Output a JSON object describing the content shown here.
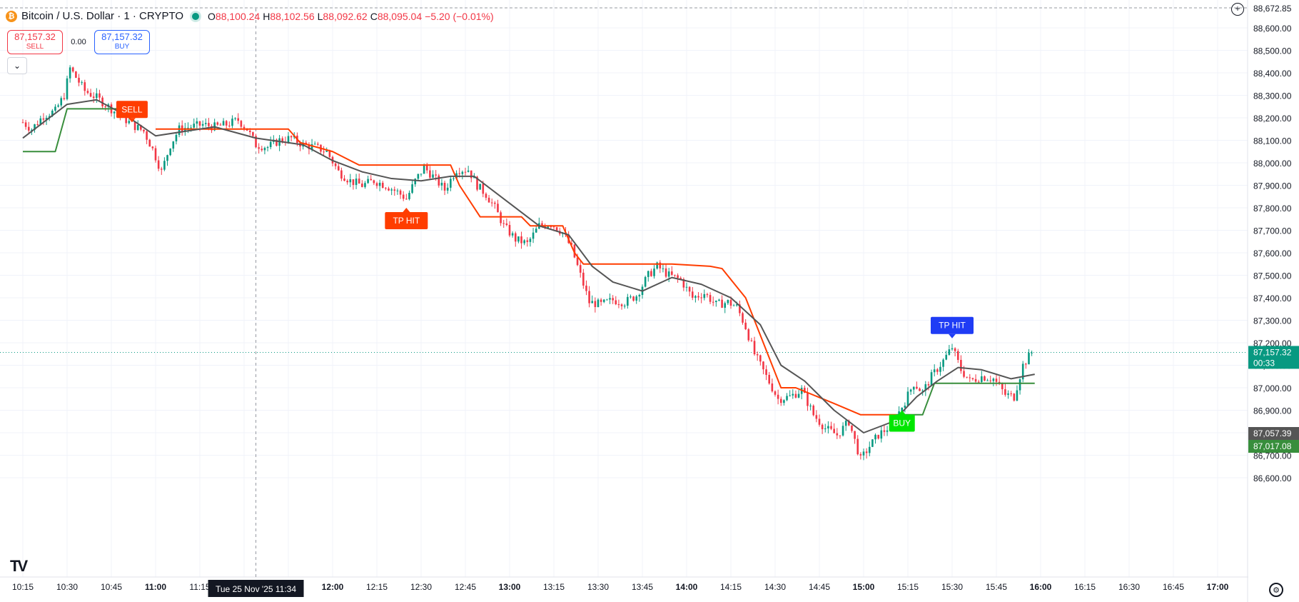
{
  "header": {
    "coin_icon": "bitcoin-icon",
    "symbol_title": "Bitcoin / U.S. Dollar · 1 · CRYPTO",
    "open_label": "O",
    "open": "88,100.24",
    "high_label": "H",
    "high": "88,102.56",
    "low_label": "L",
    "low": "88,092.62",
    "close_label": "C",
    "close": "88,095.04",
    "change": "−5.20 (−0.01%)"
  },
  "trade": {
    "sell_price": "87,157.32",
    "sell_label": "SELL",
    "spread": "0.00",
    "buy_price": "87,157.32",
    "buy_label": "BUY"
  },
  "colors": {
    "up": "#089981",
    "down": "#f23645",
    "ma": "#555555",
    "trail_down": "#ff3d00",
    "trail_up": "#388e3c",
    "buy_marker": "#00e600",
    "tp_blue": "#1f3cf5"
  },
  "chart_data": {
    "type": "candlestick",
    "x_ticks": [
      "10:15",
      "10:30",
      "10:45",
      "11:00",
      "11:15",
      "11:30",
      "11:45",
      "12:00",
      "12:15",
      "12:30",
      "12:45",
      "13:00",
      "13:15",
      "13:30",
      "13:45",
      "14:00",
      "14:15",
      "14:30",
      "14:45",
      "15:00",
      "15:15",
      "15:30",
      "15:45",
      "16:00",
      "16:15",
      "16:30",
      "16:45",
      "17:00"
    ],
    "y_ticks": [
      "86,600.00",
      "86,700.00",
      "86,800.00",
      "86,900.00",
      "87,000.00",
      "87,100.00",
      "87,200.00",
      "87,300.00",
      "87,400.00",
      "87,500.00",
      "87,600.00",
      "87,700.00",
      "87,800.00",
      "87,900.00",
      "88,000.00",
      "88,100.00",
      "88,200.00",
      "88,300.00",
      "88,400.00",
      "88,500.00",
      "88,600.00"
    ],
    "crosshair": {
      "time": "11:34",
      "date_label": "Tue 25 Nov '25   11:34"
    },
    "price_badges": [
      {
        "label": "87,157.32",
        "sub": "00:33",
        "value": 87157.32,
        "color": "#089981"
      },
      {
        "label": "87,057.39",
        "value": 87057.39,
        "color": "#555555"
      },
      {
        "label": "87,017.08",
        "value": 87017.08,
        "color": "#388e3c"
      }
    ],
    "top_cut_label": "88,672.85",
    "close_path": [
      [
        "10:15",
        88180
      ],
      [
        "10:18",
        88150
      ],
      [
        "10:22",
        88210
      ],
      [
        "10:26",
        88230
      ],
      [
        "10:29",
        88300
      ],
      [
        "10:31",
        88420
      ],
      [
        "10:33",
        88380
      ],
      [
        "10:36",
        88320
      ],
      [
        "10:40",
        88290
      ],
      [
        "10:44",
        88250
      ],
      [
        "10:48",
        88210
      ],
      [
        "10:52",
        88170
      ],
      [
        "10:56",
        88140
      ],
      [
        "10:59",
        88060
      ],
      [
        "11:02",
        87960
      ],
      [
        "11:05",
        88080
      ],
      [
        "11:08",
        88150
      ],
      [
        "11:12",
        88160
      ],
      [
        "11:16",
        88170
      ],
      [
        "11:20",
        88160
      ],
      [
        "11:24",
        88170
      ],
      [
        "11:28",
        88190
      ],
      [
        "11:31",
        88150
      ],
      [
        "11:34",
        88080
      ],
      [
        "11:38",
        88070
      ],
      [
        "11:42",
        88100
      ],
      [
        "11:46",
        88110
      ],
      [
        "11:50",
        88080
      ],
      [
        "11:54",
        88070
      ],
      [
        "11:58",
        88050
      ],
      [
        "12:02",
        87960
      ],
      [
        "12:06",
        87920
      ],
      [
        "12:10",
        87900
      ],
      [
        "12:14",
        87920
      ],
      [
        "12:18",
        87900
      ],
      [
        "12:22",
        87870
      ],
      [
        "12:25",
        87840
      ],
      [
        "12:28",
        87920
      ],
      [
        "12:31",
        87980
      ],
      [
        "12:34",
        87940
      ],
      [
        "12:38",
        87880
      ],
      [
        "12:42",
        87970
      ],
      [
        "12:46",
        87970
      ],
      [
        "12:49",
        87900
      ],
      [
        "12:52",
        87860
      ],
      [
        "12:55",
        87800
      ],
      [
        "12:58",
        87720
      ],
      [
        "13:02",
        87660
      ],
      [
        "13:06",
        87640
      ],
      [
        "13:10",
        87720
      ],
      [
        "13:14",
        87730
      ],
      [
        "13:18",
        87690
      ],
      [
        "13:21",
        87620
      ],
      [
        "13:24",
        87500
      ],
      [
        "13:27",
        87380
      ],
      [
        "13:31",
        87370
      ],
      [
        "13:35",
        87390
      ],
      [
        "13:39",
        87380
      ],
      [
        "13:43",
        87410
      ],
      [
        "13:47",
        87500
      ],
      [
        "13:50",
        87540
      ],
      [
        "13:54",
        87500
      ],
      [
        "13:58",
        87480
      ],
      [
        "14:02",
        87400
      ],
      [
        "14:06",
        87420
      ],
      [
        "14:10",
        87370
      ],
      [
        "14:14",
        87380
      ],
      [
        "14:17",
        87360
      ],
      [
        "14:20",
        87270
      ],
      [
        "14:23",
        87150
      ],
      [
        "14:27",
        87050
      ],
      [
        "14:31",
        86950
      ],
      [
        "14:35",
        86960
      ],
      [
        "14:39",
        86990
      ],
      [
        "14:43",
        86880
      ],
      [
        "14:47",
        86820
      ],
      [
        "14:51",
        86790
      ],
      [
        "14:55",
        86850
      ],
      [
        "14:59",
        86680
      ],
      [
        "15:02",
        86740
      ],
      [
        "15:05",
        86790
      ],
      [
        "15:08",
        86820
      ],
      [
        "15:11",
        86870
      ],
      [
        "15:14",
        86940
      ],
      [
        "15:17",
        87020
      ],
      [
        "15:20",
        86980
      ],
      [
        "15:23",
        87050
      ],
      [
        "15:27",
        87120
      ],
      [
        "15:30",
        87180
      ],
      [
        "15:33",
        87080
      ],
      [
        "15:36",
        87030
      ],
      [
        "15:40",
        87050
      ],
      [
        "15:44",
        87040
      ],
      [
        "15:48",
        86970
      ],
      [
        "15:51",
        86960
      ],
      [
        "15:54",
        87100
      ],
      [
        "15:57",
        87157
      ]
    ],
    "moving_average": [
      [
        "10:15",
        88110
      ],
      [
        "10:30",
        88260
      ],
      [
        "10:40",
        88280
      ],
      [
        "10:50",
        88210
      ],
      [
        "11:00",
        88120
      ],
      [
        "11:10",
        88140
      ],
      [
        "11:20",
        88160
      ],
      [
        "11:34",
        88110
      ],
      [
        "11:50",
        88080
      ],
      [
        "12:00",
        88010
      ],
      [
        "12:10",
        87960
      ],
      [
        "12:20",
        87930
      ],
      [
        "12:30",
        87920
      ],
      [
        "12:40",
        87940
      ],
      [
        "12:48",
        87940
      ],
      [
        "13:00",
        87820
      ],
      [
        "13:10",
        87720
      ],
      [
        "13:20",
        87680
      ],
      [
        "13:28",
        87540
      ],
      [
        "13:35",
        87470
      ],
      [
        "13:45",
        87430
      ],
      [
        "13:55",
        87490
      ],
      [
        "14:05",
        87460
      ],
      [
        "14:15",
        87400
      ],
      [
        "14:25",
        87280
      ],
      [
        "14:32",
        87100
      ],
      [
        "14:40",
        87030
      ],
      [
        "14:50",
        86900
      ],
      [
        "15:00",
        86800
      ],
      [
        "15:10",
        86850
      ],
      [
        "15:18",
        86960
      ],
      [
        "15:25",
        87030
      ],
      [
        "15:32",
        87090
      ],
      [
        "15:40",
        87080
      ],
      [
        "15:50",
        87040
      ],
      [
        "15:58",
        87060
      ]
    ],
    "trail_down": [
      [
        "11:00",
        88150
      ],
      [
        "11:45",
        88150
      ],
      [
        "11:49",
        88090
      ],
      [
        "12:00",
        88050
      ],
      [
        "12:06",
        88010
      ],
      [
        "12:09",
        87990
      ],
      [
        "12:40",
        87990
      ],
      [
        "12:43",
        87900
      ],
      [
        "12:50",
        87760
      ],
      [
        "13:04",
        87760
      ],
      [
        "13:07",
        87720
      ],
      [
        "13:18",
        87720
      ],
      [
        "13:22",
        87600
      ],
      [
        "13:25",
        87550
      ],
      [
        "13:55",
        87550
      ],
      [
        "14:08",
        87540
      ],
      [
        "14:12",
        87530
      ],
      [
        "14:20",
        87400
      ],
      [
        "14:26",
        87200
      ],
      [
        "14:32",
        87000
      ],
      [
        "14:37",
        87000
      ],
      [
        "14:50",
        86930
      ],
      [
        "14:59",
        86880
      ],
      [
        "15:11",
        86880
      ]
    ],
    "trail_up_1": [
      [
        "10:15",
        88050
      ],
      [
        "10:26",
        88050
      ],
      [
        "10:30",
        88240
      ],
      [
        "10:50",
        88240
      ]
    ],
    "trail_up_2": [
      [
        "15:11",
        86880
      ],
      [
        "15:20",
        86880
      ],
      [
        "15:24",
        87020
      ],
      [
        "15:58",
        87020
      ]
    ],
    "markers": [
      {
        "label": "SELL",
        "time": "10:52",
        "value": 88180,
        "color": "#ff3d00",
        "arrow": "down"
      },
      {
        "label": "TP HIT",
        "time": "12:25",
        "value": 87800,
        "color": "#ff3d00",
        "arrow": "up"
      },
      {
        "label": "BUY",
        "time": "15:13",
        "value": 86900,
        "color": "#00e600",
        "arrow": "up"
      },
      {
        "label": "TP HIT",
        "time": "15:30",
        "value": 87220,
        "color": "#1f3cf5",
        "arrow": "down"
      }
    ],
    "grid": true
  }
}
